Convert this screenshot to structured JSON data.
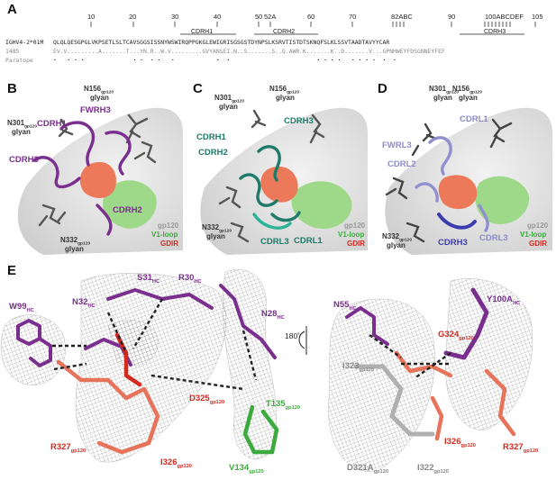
{
  "panelA": {
    "letter": "A",
    "positions": [
      "10",
      "20",
      "30",
      "40",
      "50",
      "52A",
      "60",
      "70",
      "82ABC",
      "90",
      "100ABCDEF",
      "105"
    ],
    "cdr_labels": [
      "CDRH1",
      "CDRH2",
      "CDRH3"
    ],
    "row_germline_label": "IGHV4-2*01M",
    "row_germline_seq": "QLQLQESGPGLVKPSETLSLTCAVSGGSISSNYWSWIRQPPGKGLEWIGRISGSGSTDYNPSLKSRVTISTDTSKNQFSLKLSSVTAADTAVYYCAR",
    "row_ab_label": "1485",
    "row_ab_seq": "EV.V.........A.......T...YN.R..W.V.........GVYANSEI.N..S.......S..Q.AWR.K.......K..D.......V...GPNHWEYFDSGNNEYFEF",
    "row_paratope_label": "Paratope",
    "row_paratope_marks": ".   . . .              . .  . .   .            .  .                         . . . .   . . . .  .  ."
  },
  "panelB": {
    "letter": "B",
    "labels": {
      "cdrh1": "CDRH1",
      "fwrh3": "FWRH3",
      "cdrh3": "CDRH3",
      "cdrh2": "CDRH2",
      "n301": "N301",
      "n301_sub": "gp120",
      "n301_line2": "glyan",
      "n156": "N156",
      "n156_sub": "gp120",
      "n156_line2": "glyan",
      "n332": "N332",
      "n332_sub": "gp120",
      "n332_line2": "glyan",
      "gp120": "gp120",
      "v1loop": "V1-loop",
      "gdir": "GDIR"
    }
  },
  "panelC": {
    "letter": "C",
    "labels": {
      "cdrh3": "CDRH3",
      "cdrh1": "CDRH1",
      "cdrh2": "CDRH2",
      "cdrl3": "CDRL3",
      "cdrl1": "CDRL1",
      "n301": "N301",
      "n301_sub": "gp120",
      "n301_line2": "glyan",
      "n156": "N156",
      "n156_sub": "gp120",
      "n156_line2": "glyan",
      "n332": "N332",
      "n332_sub": "gp120",
      "n332_line2": "glyan",
      "gp120": "gp120",
      "v1loop": "V1-loop",
      "gdir": "GDIR"
    }
  },
  "panelD": {
    "letter": "D",
    "labels": {
      "cdrl1": "CDRL1",
      "fwrl3": "FWRL3",
      "cdrl2": "CDRL2",
      "cdrh3": "CDRH3",
      "cdrl3": "CDRL3",
      "n301": "N301",
      "n301_sub": "gp120",
      "n301_line2": "glyan",
      "n156": "N156",
      "n156_sub": "gp120",
      "n156_line2": "glyan",
      "n332": "N332",
      "n332_sub": "gp120",
      "n332_line2": "glyan",
      "gp120": "gp120",
      "v1loop": "V1-loop",
      "gdir": "GDIR"
    }
  },
  "panelE": {
    "letter": "E",
    "left": {
      "w99": "W99",
      "w99_sub": "HC",
      "n32": "N32",
      "n32_sub": "HC",
      "s31": "S31",
      "s31_sub": "HC",
      "r30": "R30",
      "r30_sub": "HC",
      "n28": "N28",
      "n28_sub": "HC",
      "d325": "D325",
      "d325_sub": "gp120",
      "t135": "T135",
      "t135_sub": "gp120",
      "r327": "R327",
      "r327_sub": "gp120",
      "i326": "I326",
      "i326_sub": "gp120",
      "v134": "V134",
      "v134_sub": "gp120"
    },
    "rotation": "180˚",
    "right": {
      "n55": "N55",
      "n55_sub": "HC",
      "y100a": "Y100A",
      "y100a_sub": "HC",
      "g324": "G324",
      "g324_sub": "gp120",
      "i323": "I323",
      "i323_sub": "gp120",
      "i326": "I326",
      "i326_sub": "gp120",
      "r327": "R327",
      "r327_sub": "gp120",
      "d321a": "D321A",
      "d321a_sub": "gp120",
      "i322": "I322",
      "i322_sub": "gp120"
    }
  },
  "colors": {
    "purple": "#7a2e8e",
    "teal": "#1f7a6a",
    "lavender": "#8c8ccc",
    "green": "#3caa3c",
    "red": "#d42a1e",
    "salmon": "#e6735a",
    "gray": "#8a8a8a",
    "mesh": "#9a9a9a"
  }
}
